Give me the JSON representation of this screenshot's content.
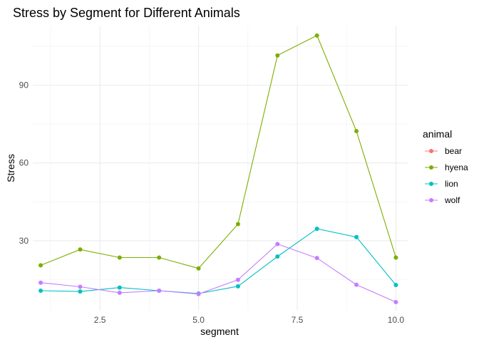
{
  "chart_data": {
    "type": "line",
    "title": "Stress by Segment for Different Animals",
    "xlabel": "segment",
    "ylabel": "Stress",
    "xlim": [
      0.8,
      10.3
    ],
    "ylim": [
      3,
      113
    ],
    "x_ticks": [
      2.5,
      5.0,
      7.5,
      10.0
    ],
    "x_tick_labels": [
      "2.5",
      "5.0",
      "7.5",
      "10.0"
    ],
    "y_ticks": [
      30,
      60,
      90
    ],
    "y_tick_labels": [
      "30",
      "60",
      "90"
    ],
    "grid": true,
    "legend_title": "animal",
    "legend_position": "right",
    "x": [
      1,
      2,
      3,
      4,
      5,
      6,
      7,
      8,
      9,
      10
    ],
    "series": [
      {
        "name": "bear",
        "color": "#F8766D",
        "values": [
          null,
          null,
          null,
          null,
          null,
          null,
          null,
          null,
          null,
          null
        ]
      },
      {
        "name": "hyena",
        "color": "#7CAE00",
        "values": [
          20.5,
          26.6,
          23.5,
          23.5,
          19.3,
          36.4,
          101.5,
          109.2,
          72.3,
          23.5
        ]
      },
      {
        "name": "lion",
        "color": "#00BFC4",
        "values": [
          10.7,
          10.4,
          11.9,
          10.7,
          9.6,
          12.4,
          23.9,
          34.6,
          31.4,
          12.9
        ]
      },
      {
        "name": "wolf",
        "color": "#C77CFF",
        "values": [
          13.8,
          12.2,
          9.9,
          10.7,
          9.4,
          14.9,
          28.7,
          23.3,
          13.0,
          6.3
        ]
      }
    ]
  }
}
